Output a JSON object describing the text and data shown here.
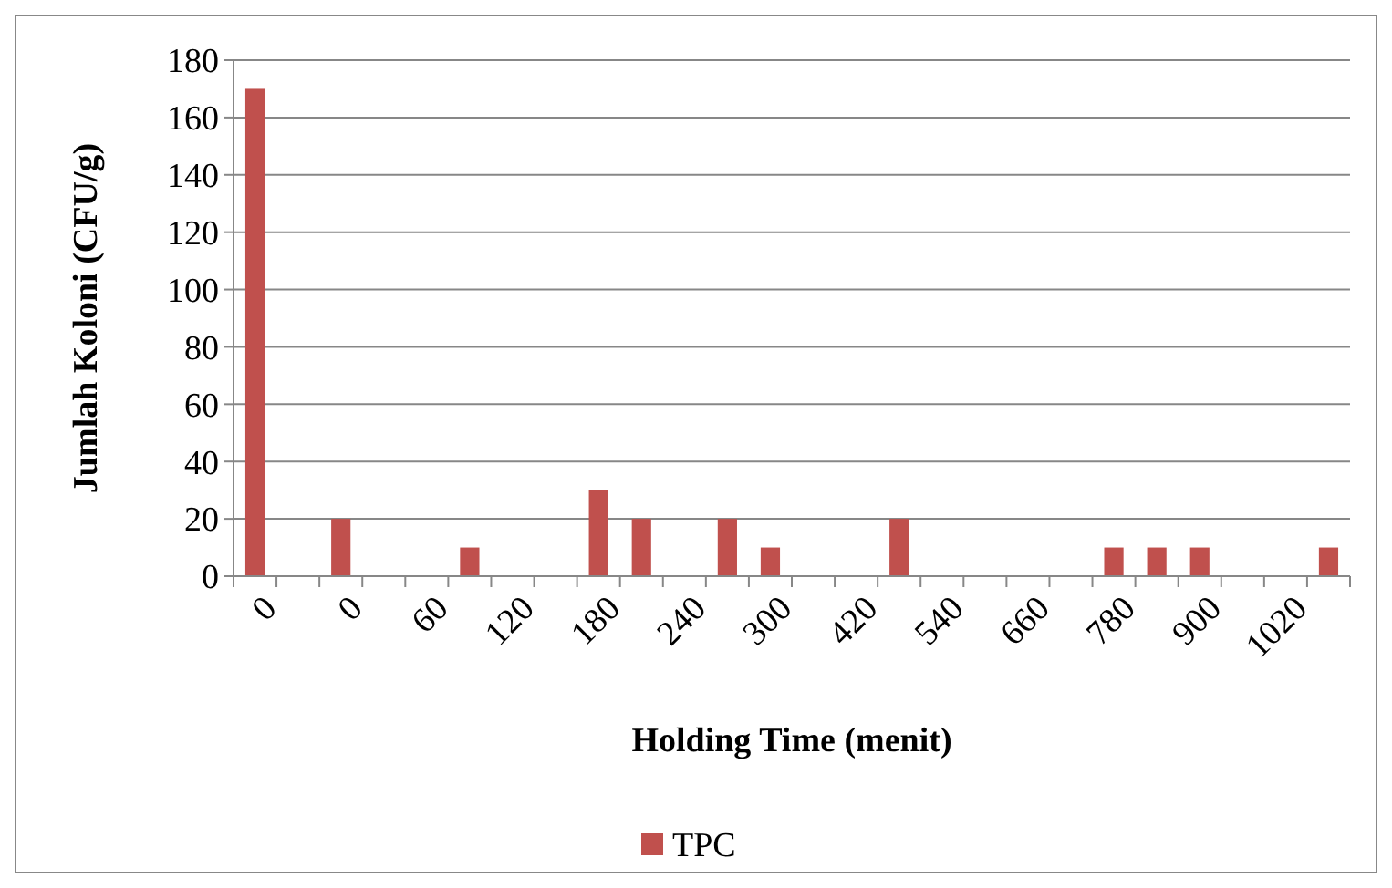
{
  "chart_data": {
    "type": "bar",
    "xlabel": "Holding Time (menit)",
    "ylabel": "Jumlah Koloni (CFU/g)",
    "categories": [
      "0",
      null,
      "0",
      null,
      "60",
      null,
      "120",
      null,
      "180",
      null,
      "240",
      null,
      "300",
      null,
      "420",
      null,
      "540",
      null,
      "660",
      null,
      "780",
      null,
      "900",
      null,
      "1020",
      null
    ],
    "series": [
      {
        "name": "TPC",
        "color": "#c0504d",
        "values": [
          170,
          0,
          20,
          0,
          0,
          10,
          0,
          0,
          30,
          20,
          0,
          20,
          10,
          0,
          0,
          20,
          0,
          0,
          0,
          0,
          10,
          10,
          10,
          0,
          0,
          10
        ]
      }
    ],
    "ylim": [
      0,
      180
    ],
    "yticks": [
      0,
      20,
      40,
      60,
      80,
      100,
      120,
      140,
      160,
      180
    ],
    "grid": "y",
    "legend": "bottom"
  }
}
